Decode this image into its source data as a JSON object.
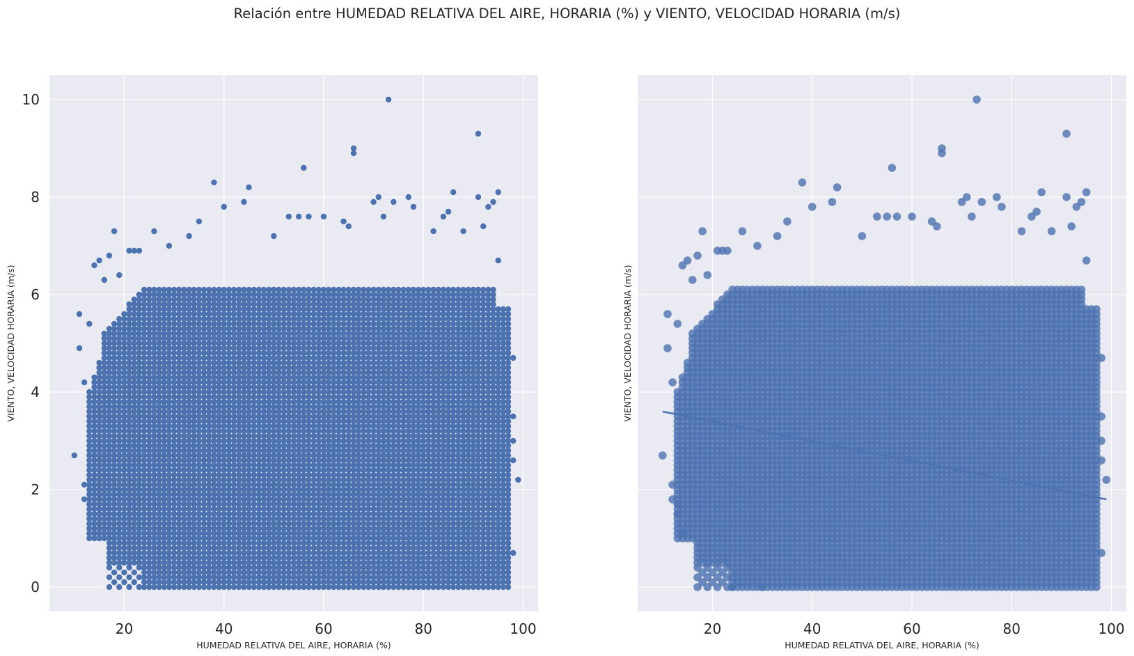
{
  "figure": {
    "title": "Relación entre HUMEDAD RELATIVA DEL AIRE, HORARIA (%) y VIENTO, VELOCIDAD HORARIA (m/s)"
  },
  "colors": {
    "background": "#eaeaf2",
    "grid": "#ffffff",
    "points": "#4c72b0",
    "regression_line": "#4c72b0"
  },
  "chart_data": [
    {
      "type": "scatter",
      "style": "seaborn-darkgrid",
      "xlabel": "HUMEDAD RELATIVA DEL AIRE, HORARIA (%)",
      "ylabel": "VIENTO, VELOCIDAD HORARIA (m/s)",
      "xlim": [
        5,
        103
      ],
      "ylim": [
        -0.5,
        10.5
      ],
      "xticks": [
        20,
        40,
        60,
        80,
        100
      ],
      "yticks": [
        0,
        2,
        4,
        6,
        8,
        10
      ],
      "y_tick_labels_visible": true,
      "grid": true,
      "dense_region": {
        "x_range": [
          13,
          97
        ],
        "y_range": [
          0,
          6.1
        ],
        "x_step": 1,
        "y_step": 0.1,
        "note": "points form a dense grid filling this region"
      },
      "sparse_points": [
        [
          10,
          2.7
        ],
        [
          11,
          5.6
        ],
        [
          11,
          4.9
        ],
        [
          12,
          2.1
        ],
        [
          12,
          1.8
        ],
        [
          12,
          4.2
        ],
        [
          13,
          5.4
        ],
        [
          13,
          1.5
        ],
        [
          13,
          1.7
        ],
        [
          14,
          6.6
        ],
        [
          14,
          1.1
        ],
        [
          15,
          6.7
        ],
        [
          16,
          6.3
        ],
        [
          17,
          6.8
        ],
        [
          18,
          7.3
        ],
        [
          19,
          6.4
        ],
        [
          21,
          6.9
        ],
        [
          22,
          6.9
        ],
        [
          23,
          6.9
        ],
        [
          24,
          0.0
        ],
        [
          26,
          7.3
        ],
        [
          29,
          7.0
        ],
        [
          30,
          0.0
        ],
        [
          33,
          7.2
        ],
        [
          35,
          7.5
        ],
        [
          38,
          8.3
        ],
        [
          40,
          7.8
        ],
        [
          44,
          7.9
        ],
        [
          45,
          8.2
        ],
        [
          50,
          7.2
        ],
        [
          53,
          7.6
        ],
        [
          55,
          7.6
        ],
        [
          56,
          8.6
        ],
        [
          57,
          7.6
        ],
        [
          60,
          7.6
        ],
        [
          64,
          7.5
        ],
        [
          65,
          7.4
        ],
        [
          66,
          9.0
        ],
        [
          66,
          8.9
        ],
        [
          70,
          7.9
        ],
        [
          71,
          8.0
        ],
        [
          72,
          7.6
        ],
        [
          73,
          10.0
        ],
        [
          74,
          7.9
        ],
        [
          77,
          8.0
        ],
        [
          78,
          7.8
        ],
        [
          82,
          7.3
        ],
        [
          84,
          7.6
        ],
        [
          85,
          7.7
        ],
        [
          86,
          8.1
        ],
        [
          88,
          7.3
        ],
        [
          91,
          8.0
        ],
        [
          91,
          9.3
        ],
        [
          92,
          7.4
        ],
        [
          93,
          7.8
        ],
        [
          94,
          7.9
        ],
        [
          95,
          8.1
        ],
        [
          95,
          6.7
        ],
        [
          98,
          4.7
        ],
        [
          98,
          3.5
        ],
        [
          98,
          0.7
        ],
        [
          99,
          2.2
        ],
        [
          98,
          2.6
        ],
        [
          98,
          3.0
        ]
      ]
    },
    {
      "type": "scatter",
      "style": "seaborn-darkgrid",
      "variant": "regplot",
      "xlabel": "HUMEDAD RELATIVA DEL AIRE, HORARIA (%)",
      "ylabel": "VIENTO, VELOCIDAD HORARIA (m/s)",
      "xlim": [
        5,
        103
      ],
      "ylim": [
        -0.5,
        10.5
      ],
      "xticks": [
        20,
        40,
        60,
        80,
        100
      ],
      "yticks": [
        0,
        2,
        4,
        6,
        8,
        10
      ],
      "y_tick_labels_visible": false,
      "grid": true,
      "dense_region": {
        "x_range": [
          13,
          97
        ],
        "y_range": [
          0,
          6.1
        ],
        "x_step": 1,
        "y_step": 0.1,
        "note": "same data as left panel, larger semi-transparent markers"
      },
      "sparse_points_same_as": "left",
      "regression_line": {
        "x": [
          10,
          99
        ],
        "y": [
          3.6,
          1.8
        ]
      }
    }
  ]
}
